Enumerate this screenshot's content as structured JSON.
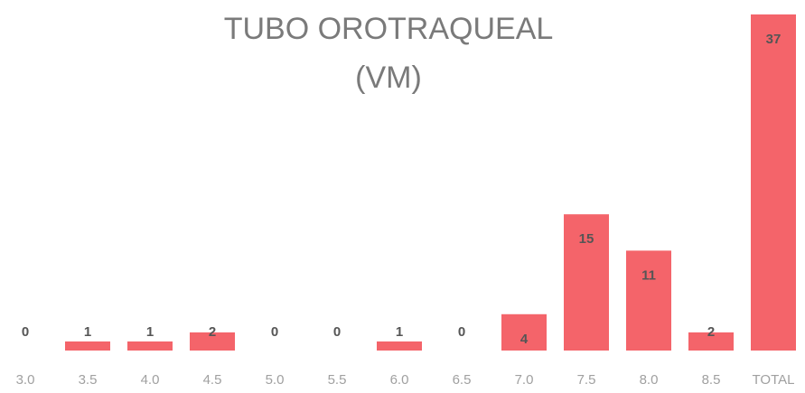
{
  "chart_data": {
    "type": "bar",
    "title": [
      "TUBO OROTRAQUEAL",
      "(VM)"
    ],
    "categories": [
      "3.0",
      "3.5",
      "4.0",
      "4.5",
      "5.0",
      "5.5",
      "6.0",
      "6.5",
      "7.0",
      "7.5",
      "8.0",
      "8.5",
      "TOTAL"
    ],
    "values": [
      0,
      1,
      1,
      2,
      0,
      0,
      1,
      0,
      4,
      15,
      11,
      2,
      37
    ],
    "color": "#f4646a"
  }
}
